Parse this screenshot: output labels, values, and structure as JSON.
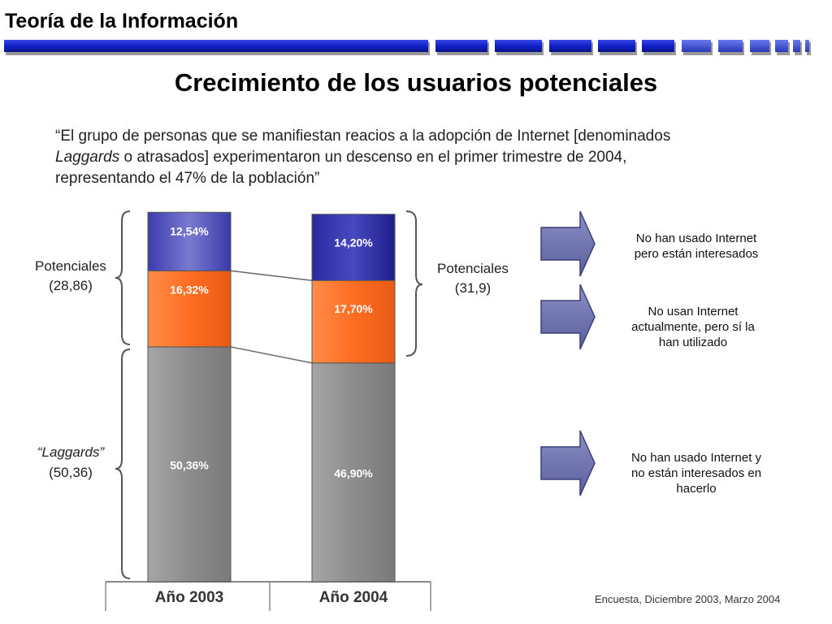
{
  "header": {
    "title": "Teoría de la Información"
  },
  "slide": {
    "title": "Crecimiento de los usuarios potenciales"
  },
  "quote": {
    "line1": "“El grupo de personas que se manifiestan reacios a la adopción de Internet [denominados",
    "line2_italic": "Laggards",
    "line2_rest": " o atrasados] experimentaron un descenso en el primer trimestre de 2004,",
    "line3": "representando el 47% de la población”"
  },
  "chart_data": {
    "type": "bar",
    "stacked": true,
    "unit": "%",
    "categories": [
      "Año 2003",
      "Año 2004"
    ],
    "series": [
      {
        "values": [
          50.36,
          46.9
        ],
        "labels": [
          "50,36%",
          "46,90%"
        ],
        "color": "#8e8e8e"
      },
      {
        "values": [
          16.32,
          17.7
        ],
        "labels": [
          "16,32%",
          "17,70%"
        ],
        "color": "#ff7a33"
      },
      {
        "values": [
          12.54,
          14.2
        ],
        "labels": [
          "12,54%",
          "14,20%"
        ],
        "color": "#4a4aa6"
      }
    ],
    "brackets": [
      {
        "label": "Potenciales",
        "value": "(28,86)"
      },
      {
        "label": "Potenciales",
        "value": "(31,9)"
      },
      {
        "label": "“Laggards”",
        "value": "(50,36)"
      }
    ]
  },
  "legend": {
    "items": [
      {
        "lines": [
          "No han usado Internet",
          "pero están interesados"
        ]
      },
      {
        "lines": [
          "No usan Internet",
          "actualmente,  pero sí la",
          "han utilizado"
        ]
      },
      {
        "lines": [
          "No han usado Internet y",
          "no están interesados en",
          "hacerlo"
        ]
      }
    ],
    "arrow_color": "#6f74ac"
  },
  "footer": {
    "source": "Encuesta, Diciembre 2003, Marzo 2004"
  }
}
